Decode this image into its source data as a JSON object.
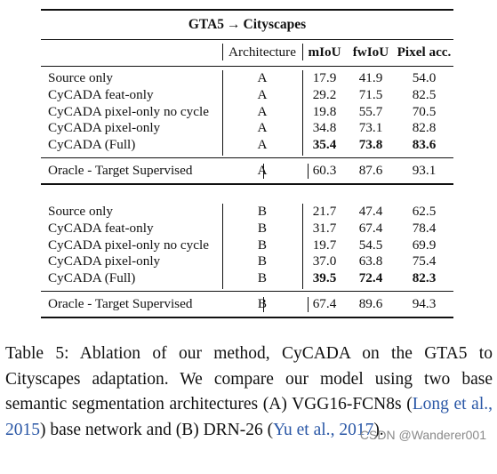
{
  "table": {
    "title_left": "GTA5",
    "title_arrow": "→",
    "title_right": "Cityscapes",
    "columns": [
      "Architecture",
      "mIoU",
      "fwIoU",
      "Pixel acc."
    ],
    "groups": [
      {
        "rows": [
          {
            "method": "Source only",
            "arch": "A",
            "miou": "17.9",
            "fwiou": "41.9",
            "pix": "54.0",
            "bold": false
          },
          {
            "method": "CyCADA feat-only",
            "arch": "A",
            "miou": "29.2",
            "fwiou": "71.5",
            "pix": "82.5",
            "bold": false
          },
          {
            "method": "CyCADA pixel-only no cycle",
            "arch": "A",
            "miou": "19.8",
            "fwiou": "55.7",
            "pix": "70.5",
            "bold": false
          },
          {
            "method": "CyCADA pixel-only",
            "arch": "A",
            "miou": "34.8",
            "fwiou": "73.1",
            "pix": "82.8",
            "bold": false
          },
          {
            "method": "CyCADA (Full)",
            "arch": "A",
            "miou": "35.4",
            "fwiou": "73.8",
            "pix": "83.6",
            "bold": true
          }
        ],
        "oracle": {
          "method": "Oracle - Target Supervised",
          "arch": "A",
          "miou": "60.3",
          "fwiou": "87.6",
          "pix": "93.1"
        }
      },
      {
        "rows": [
          {
            "method": "Source only",
            "arch": "B",
            "miou": "21.7",
            "fwiou": "47.4",
            "pix": "62.5",
            "bold": false
          },
          {
            "method": "CyCADA feat-only",
            "arch": "B",
            "miou": "31.7",
            "fwiou": "67.4",
            "pix": "78.4",
            "bold": false
          },
          {
            "method": "CyCADA pixel-only no cycle",
            "arch": "B",
            "miou": "19.7",
            "fwiou": "54.5",
            "pix": "69.9",
            "bold": false
          },
          {
            "method": "CyCADA pixel-only",
            "arch": "B",
            "miou": "37.0",
            "fwiou": "63.8",
            "pix": "75.4",
            "bold": false
          },
          {
            "method": "CyCADA (Full)",
            "arch": "B",
            "miou": "39.5",
            "fwiou": "72.4",
            "pix": "82.3",
            "bold": true
          }
        ],
        "oracle": {
          "method": "Oracle - Target Supervised",
          "arch": "B",
          "miou": "67.4",
          "fwiou": "89.6",
          "pix": "94.3"
        }
      }
    ]
  },
  "caption": {
    "label": "Table 5:",
    "text_1": "Ablation of our method, CyCADA on the GTA5 to Cityscapes adaptation. We compare our model using two base semantic segmentation architectures (A) VGG16-FCN8s (",
    "ref_1": "Long et al.",
    "sep_1": ", ",
    "ref_1_year": "2015",
    "text_2": ") base network and (B) DRN-26 (",
    "ref_2": "Yu et al.",
    "sep_2": ", ",
    "ref_2_year": "2017",
    "text_3": ")."
  },
  "watermark": "CSDN @Wanderer001"
}
